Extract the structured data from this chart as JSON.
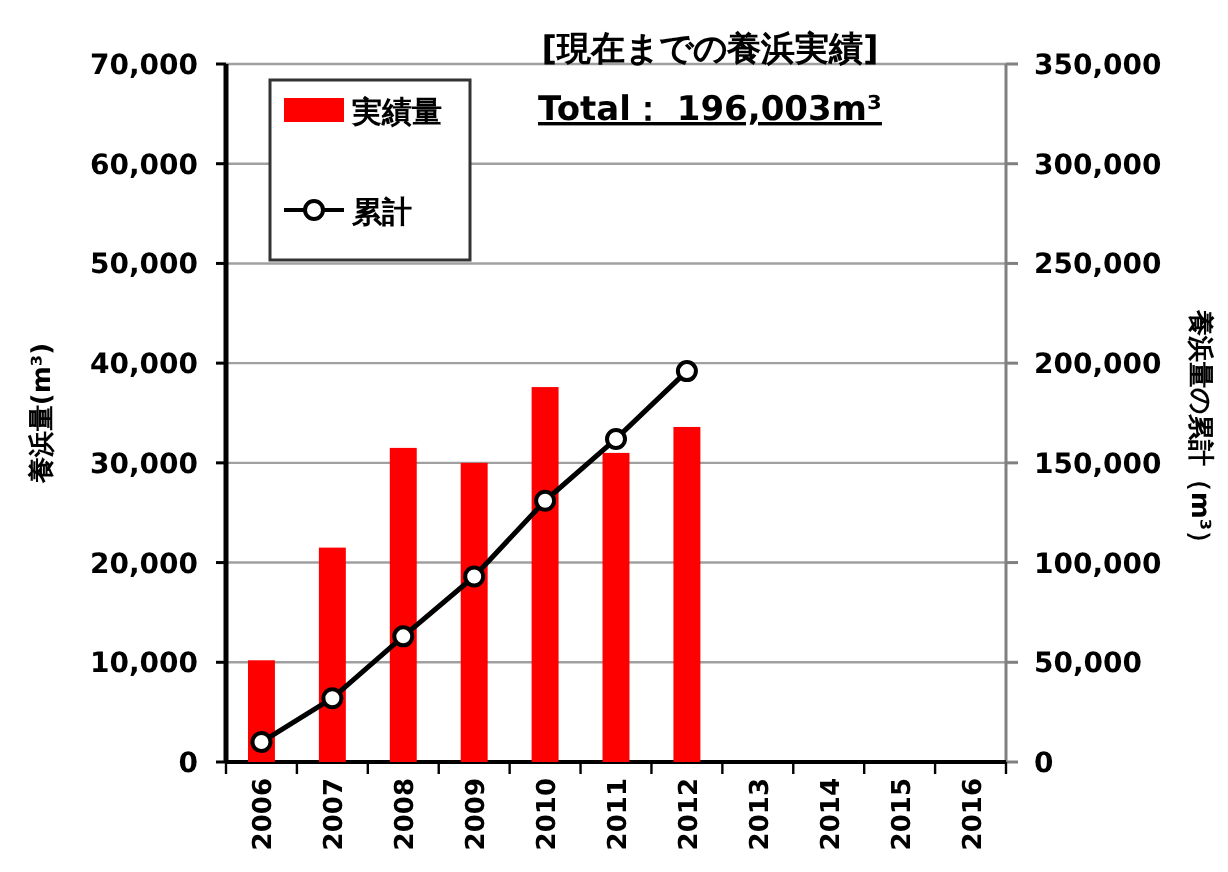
{
  "chart_data": {
    "type": "bar",
    "title": "[現在までの養浜実績]",
    "subtitle": "Total： 196,003m³",
    "ylabel": "養浜量(m³)",
    "y2label": "養浜量の累計（m³）",
    "categories": [
      "2006",
      "2007",
      "2008",
      "2009",
      "2010",
      "2011",
      "2012",
      "2013",
      "2014",
      "2015",
      "2016"
    ],
    "series": [
      {
        "name": "実績量",
        "color": "#ff0000",
        "values": [
          10200,
          21500,
          31500,
          30000,
          37600,
          31000,
          33600,
          null,
          null,
          null,
          null
        ]
      },
      {
        "name": "累計",
        "type": "line",
        "axis": "y2",
        "color": "#000000",
        "values": [
          10000,
          32000,
          63000,
          93000,
          131000,
          162000,
          196000,
          null,
          null,
          null,
          null
        ]
      }
    ],
    "ylim": [
      0,
      70000
    ],
    "yticks": [
      0,
      {
        "value": 10000,
        "label": "10,000"
      },
      {
        "value": 20000,
        "label": "20,000"
      },
      {
        "value": 30000,
        "label": "30,000"
      },
      {
        "value": 40000,
        "label": "40,000"
      },
      {
        "value": 50000,
        "label": "50,000"
      },
      {
        "value": 60000,
        "label": "60,000"
      },
      {
        "value": 70000,
        "label": "70,000"
      }
    ],
    "y2lim": [
      0,
      350000
    ],
    "y2ticks": [
      0,
      {
        "value": 50000,
        "label": "50,000"
      },
      {
        "value": 100000,
        "label": "100,000"
      },
      {
        "value": 150000,
        "label": "150,000"
      },
      {
        "value": 200000,
        "label": "200,000"
      },
      {
        "value": 250000,
        "label": "250,000"
      },
      {
        "value": 300000,
        "label": "300,000"
      },
      {
        "value": 350000,
        "label": "350,000"
      }
    ],
    "grid": "y",
    "legend": "top left",
    "marker": "circle",
    "line_style": "solid"
  }
}
